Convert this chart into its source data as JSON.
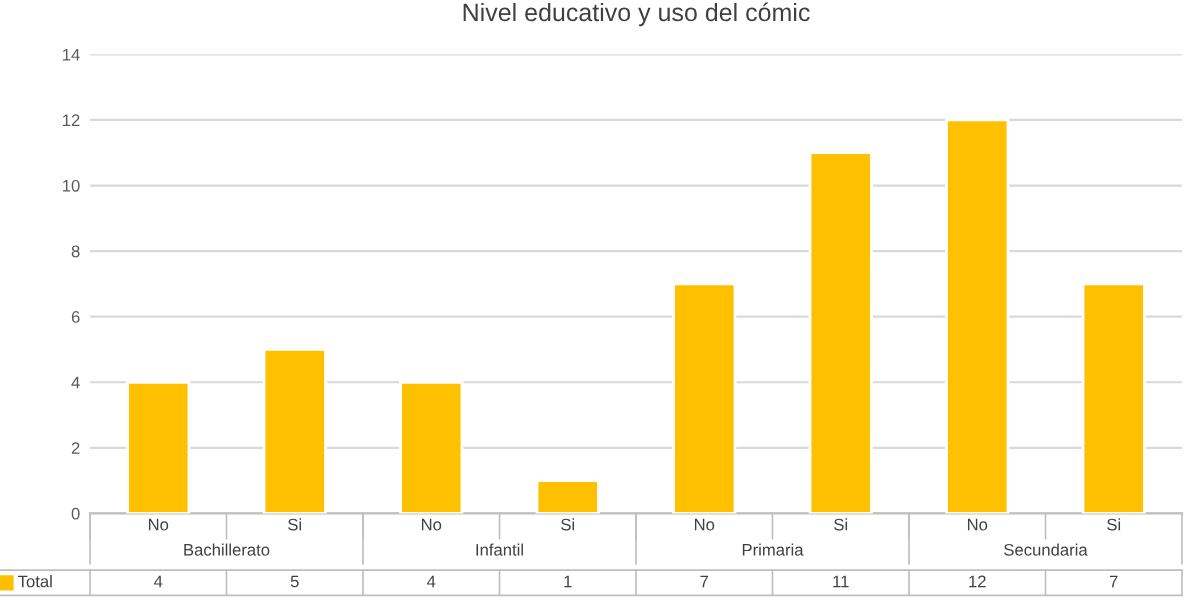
{
  "chart_data": {
    "type": "bar",
    "title": "Nivel educativo y uso del cómic",
    "categories": [
      "No",
      "Si",
      "No",
      "Si",
      "No",
      "Si",
      "No",
      "Si"
    ],
    "series": [
      {
        "name": "Total",
        "color": "#ffc000",
        "values": [
          4,
          5,
          4,
          1,
          7,
          11,
          12,
          7
        ]
      }
    ],
    "annotations": [
      "Bachillerato",
      "Infantil",
      "Primaria",
      "Secundaria"
    ],
    "ylim": [
      0,
      14
    ],
    "yticks": [
      0,
      2,
      4,
      6,
      8,
      10,
      12,
      14
    ],
    "grid": "y",
    "data_labels": true,
    "legend": "bottom"
  }
}
